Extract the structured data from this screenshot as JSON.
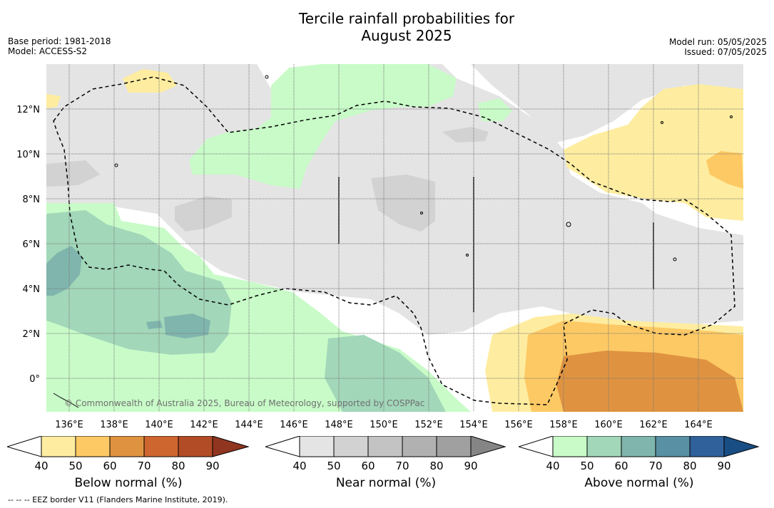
{
  "title_line1": "Tercile rainfall probabilities for",
  "title_line2": "August 2025",
  "meta_left": {
    "base_period": "Base period: 1981-2018",
    "model": "Model: ACCESS-S2"
  },
  "meta_right": {
    "model_run": "Model run: 05/05/2025",
    "issued": "Issued: 07/05/2025"
  },
  "copyright": "© Commonwealth of Australia 2025, Bureau of Meteorology, supported by COSPPac",
  "footer": "--  --  -- EEZ border V11 (Flanders Marine Institute, 2019).",
  "lon_ticks": [
    "136°E",
    "138°E",
    "140°E",
    "142°E",
    "144°E",
    "146°E",
    "148°E",
    "150°E",
    "152°E",
    "154°E",
    "156°E",
    "158°E",
    "160°E",
    "162°E",
    "164°E"
  ],
  "lat_ticks": [
    "12°N",
    "10°N",
    "8°N",
    "6°N",
    "4°N",
    "2°N",
    "0°"
  ],
  "colorbars": [
    {
      "label": "Below normal (%)",
      "ticks": [
        "40",
        "50",
        "60",
        "70",
        "80",
        "90"
      ],
      "colors": [
        "#ffffff",
        "#feeda0",
        "#fdc964",
        "#df9340",
        "#ce6630",
        "#b24c27",
        "#8f3520"
      ]
    },
    {
      "label": "Near normal (%)",
      "ticks": [
        "40",
        "50",
        "60",
        "70",
        "80",
        "90"
      ],
      "colors": [
        "#ffffff",
        "#e4e4e4",
        "#d2d2d2",
        "#c3c3c3",
        "#b1b1b1",
        "#a0a0a0",
        "#858585"
      ]
    },
    {
      "label": "Above normal (%)",
      "ticks": [
        "40",
        "50",
        "60",
        "70",
        "80",
        "90"
      ],
      "colors": [
        "#ffffff",
        "#c8fbc8",
        "#a2d7b9",
        "#7fb5ad",
        "#5990a3",
        "#30619b",
        "#194e84"
      ]
    }
  ],
  "colors": {
    "below_40": "#feeda0",
    "below_50": "#fdc964",
    "below_60": "#df9340",
    "near_40": "#e4e4e4",
    "near_50": "#d2d2d2",
    "above_40": "#c8fbc8",
    "above_50": "#a2d7b9",
    "above_60": "#7fb5ad",
    "eez_border": "#000000"
  }
}
